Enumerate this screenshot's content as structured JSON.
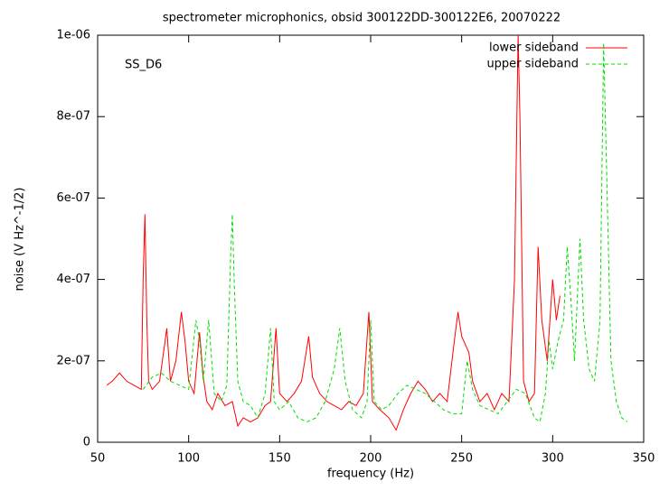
{
  "chart_data": {
    "type": "line",
    "title": "spectrometer microphonics, obsid 300122DD-300122E6, 20070222",
    "annotation": "SS_D6",
    "x_label": "frequency (Hz)",
    "y_label": "noise (V Hz^-1/2)",
    "xlim": [
      50,
      350
    ],
    "xticks": [
      50,
      100,
      150,
      200,
      250,
      300,
      350
    ],
    "ylim": [
      0,
      1e-06
    ],
    "yticks": [
      0,
      {
        "value": 2e-07,
        "label": "2e-07"
      },
      {
        "value": 4e-07,
        "label": "4e-07"
      },
      {
        "value": 6e-07,
        "label": "6e-07"
      },
      {
        "value": 8e-07,
        "label": "8e-07"
      },
      {
        "value": 1e-06,
        "label": "1e-06"
      }
    ],
    "legend": "top-right",
    "series": [
      {
        "name": "lower sideband",
        "color": "#ff0000",
        "dashed": false,
        "x": [
          55,
          58,
          62,
          66,
          70,
          74,
          75,
          76,
          77,
          78,
          80,
          84,
          88,
          90,
          93,
          96,
          98,
          100,
          103,
          106,
          108,
          110,
          113,
          116,
          120,
          124,
          127,
          130,
          134,
          138,
          142,
          145,
          148,
          150,
          154,
          158,
          162,
          166,
          168,
          172,
          176,
          180,
          184,
          188,
          192,
          196,
          199,
          201,
          205,
          210,
          214,
          218,
          222,
          226,
          230,
          234,
          238,
          242,
          246,
          248,
          250,
          254,
          256,
          260,
          264,
          268,
          272,
          276,
          279,
          281,
          282,
          284,
          287,
          290,
          292,
          294,
          297,
          300,
          302,
          304
        ],
        "values": [
          1.4e-07,
          1.5e-07,
          1.7e-07,
          1.5e-07,
          1.4e-07,
          1.3e-07,
          4e-07,
          5.6e-07,
          3e-07,
          1.5e-07,
          1.3e-07,
          1.5e-07,
          2.8e-07,
          1.5e-07,
          2e-07,
          3.2e-07,
          2.5e-07,
          1.5e-07,
          1.2e-07,
          2.7e-07,
          1.6e-07,
          1e-07,
          8e-08,
          1.2e-07,
          9e-08,
          1e-07,
          4e-08,
          6e-08,
          5e-08,
          6e-08,
          9e-08,
          1e-07,
          2.8e-07,
          1.2e-07,
          1e-07,
          1.2e-07,
          1.5e-07,
          2.6e-07,
          1.6e-07,
          1.2e-07,
          1e-07,
          9e-08,
          8e-08,
          1e-07,
          9e-08,
          1.2e-07,
          3.2e-07,
          1e-07,
          8e-08,
          6e-08,
          3e-08,
          8e-08,
          1.2e-07,
          1.5e-07,
          1.3e-07,
          1e-07,
          1.2e-07,
          1e-07,
          2.5e-07,
          3.2e-07,
          2.6e-07,
          2.2e-07,
          1.5e-07,
          1e-07,
          1.2e-07,
          8e-08,
          1.2e-07,
          1e-07,
          4e-07,
          1e-06,
          8e-07,
          1.5e-07,
          1e-07,
          1.2e-07,
          4.8e-07,
          3e-07,
          2e-07,
          4e-07,
          3e-07,
          3.6e-07
        ]
      },
      {
        "name": "upper sideband",
        "color": "#00dd00",
        "dashed": true,
        "x": [
          75,
          80,
          85,
          90,
          95,
          100,
          104,
          106,
          108,
          111,
          114,
          118,
          121,
          123,
          124,
          125,
          127,
          130,
          134,
          138,
          142,
          145,
          147,
          150,
          155,
          160,
          165,
          170,
          175,
          180,
          183,
          186,
          190,
          195,
          198,
          200,
          202,
          206,
          210,
          215,
          220,
          225,
          230,
          235,
          240,
          245,
          250,
          253,
          256,
          260,
          265,
          270,
          275,
          280,
          285,
          290,
          293,
          296,
          298,
          300,
          303,
          306,
          308,
          310,
          312,
          315,
          317,
          320,
          323,
          326,
          328,
          330,
          332,
          335,
          338,
          341
        ],
        "values": [
          1.3e-07,
          1.6e-07,
          1.7e-07,
          1.5e-07,
          1.4e-07,
          1.3e-07,
          3e-07,
          2.5e-07,
          1.5e-07,
          3e-07,
          1.2e-07,
          1e-07,
          1.4e-07,
          4.5e-07,
          5.6e-07,
          4e-07,
          1.5e-07,
          1e-07,
          9e-08,
          6e-08,
          1.2e-07,
          2.8e-07,
          1e-07,
          8e-08,
          1e-07,
          6e-08,
          5e-08,
          6e-08,
          1e-07,
          1.8e-07,
          2.8e-07,
          1.5e-07,
          8e-08,
          6e-08,
          1e-07,
          3e-07,
          1e-07,
          8e-08,
          9e-08,
          1.2e-07,
          1.4e-07,
          1.3e-07,
          1.2e-07,
          1e-07,
          8e-08,
          7e-08,
          7e-08,
          2e-07,
          1.3e-07,
          9e-08,
          8e-08,
          7e-08,
          1e-07,
          1.3e-07,
          1.2e-07,
          6e-08,
          5e-08,
          1.2e-07,
          2.5e-07,
          1.8e-07,
          2.5e-07,
          3e-07,
          4.8e-07,
          3.5e-07,
          2e-07,
          5e-07,
          3e-07,
          1.8e-07,
          1.5e-07,
          3e-07,
          9.8e-07,
          6e-07,
          2e-07,
          1e-07,
          6e-08,
          5e-08
        ]
      }
    ]
  }
}
